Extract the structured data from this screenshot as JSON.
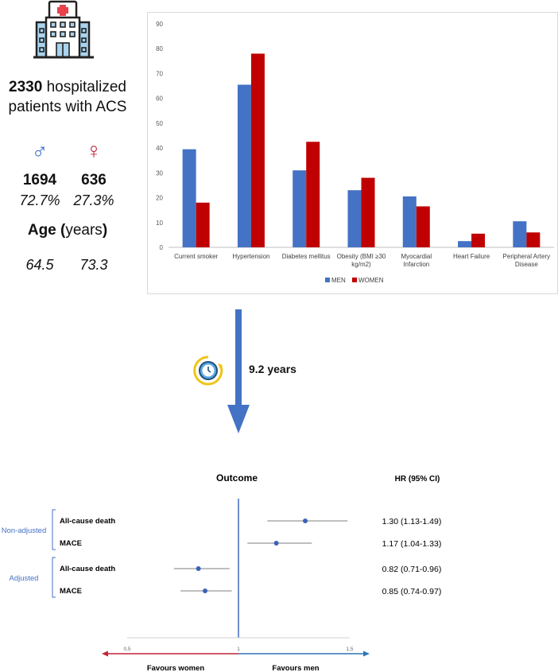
{
  "summary": {
    "patients_count": "2330",
    "patients_text_1": "hospitalized",
    "patients_text_2": "patients with ACS",
    "men_symbol": "♂",
    "women_symbol": "♀",
    "men_count": "1694",
    "women_count": "636",
    "men_pct": "72.7%",
    "women_pct": "27.3%",
    "age_label_bold": "Age (",
    "age_label_mid": "years",
    "age_label_end": ")",
    "men_age": "64.5",
    "women_age": "73.3",
    "men_color": "#3a6ec2",
    "women_color": "#c1243a"
  },
  "followup": {
    "label": "9.2 years",
    "arrow_color": "#4472c4"
  },
  "chart_data": [
    {
      "type": "bar",
      "categories": [
        "Current smoker",
        "Hypertension",
        "Diabetes mellitus",
        "Obesity (BMI ≥30 kg/m2)",
        "Myocardial Infarction",
        "Heart Failure",
        "Peripheral Artery Disease"
      ],
      "category_lines": [
        [
          "Current smoker"
        ],
        [
          "Hypertension"
        ],
        [
          "Diabetes mellitus"
        ],
        [
          "Obesity (BMI ≥30",
          "kg/m2)"
        ],
        [
          "Myocardial",
          "Infarction"
        ],
        [
          "Heart Failure"
        ],
        [
          "Peripheral Artery",
          "Disease"
        ]
      ],
      "series": [
        {
          "name": "MEN",
          "color": "#4472c4",
          "values": [
            39.5,
            65.5,
            31,
            23,
            20.5,
            2.5,
            10.5
          ]
        },
        {
          "name": "WOMEN",
          "color": "#c00000",
          "values": [
            18,
            78,
            42.5,
            28,
            16.5,
            5.5,
            6
          ]
        }
      ],
      "ylim": [
        0,
        90
      ],
      "yticks": [
        0,
        10,
        20,
        30,
        40,
        50,
        60,
        70,
        80,
        90
      ],
      "legend": "bottom"
    },
    {
      "type": "forest",
      "header_outcome": "Outcome",
      "header_hr": "HR (95% CI)",
      "groups": [
        {
          "label": "Non-adjusted",
          "rows": [
            {
              "outcome": "All-cause death",
              "hr": 1.3,
              "lo": 1.13,
              "hi": 1.49,
              "text": "1.30 (1.13-1.49)"
            },
            {
              "outcome": "MACE",
              "hr": 1.17,
              "lo": 1.04,
              "hi": 1.33,
              "text": "1.17 (1.04-1.33)"
            }
          ]
        },
        {
          "label": "Adjusted",
          "rows": [
            {
              "outcome": "All-cause death",
              "hr": 0.82,
              "lo": 0.71,
              "hi": 0.96,
              "text": "0.82 (0.71-0.96)"
            },
            {
              "outcome": "MACE",
              "hr": 0.85,
              "lo": 0.74,
              "hi": 0.97,
              "text": "0.85 (0.74-0.97)"
            }
          ]
        }
      ],
      "xlim": [
        0.5,
        1.5
      ],
      "xticks": [
        "0,5",
        "1",
        "1,5"
      ],
      "xtick_values": [
        0.5,
        1,
        1.5
      ],
      "favours_left": "Favours women",
      "favours_right": "Favours men",
      "left_color": "#c1243a",
      "right_color": "#2e75b6",
      "group_color": "#4472c4",
      "point_color": "#3a63b8"
    }
  ]
}
